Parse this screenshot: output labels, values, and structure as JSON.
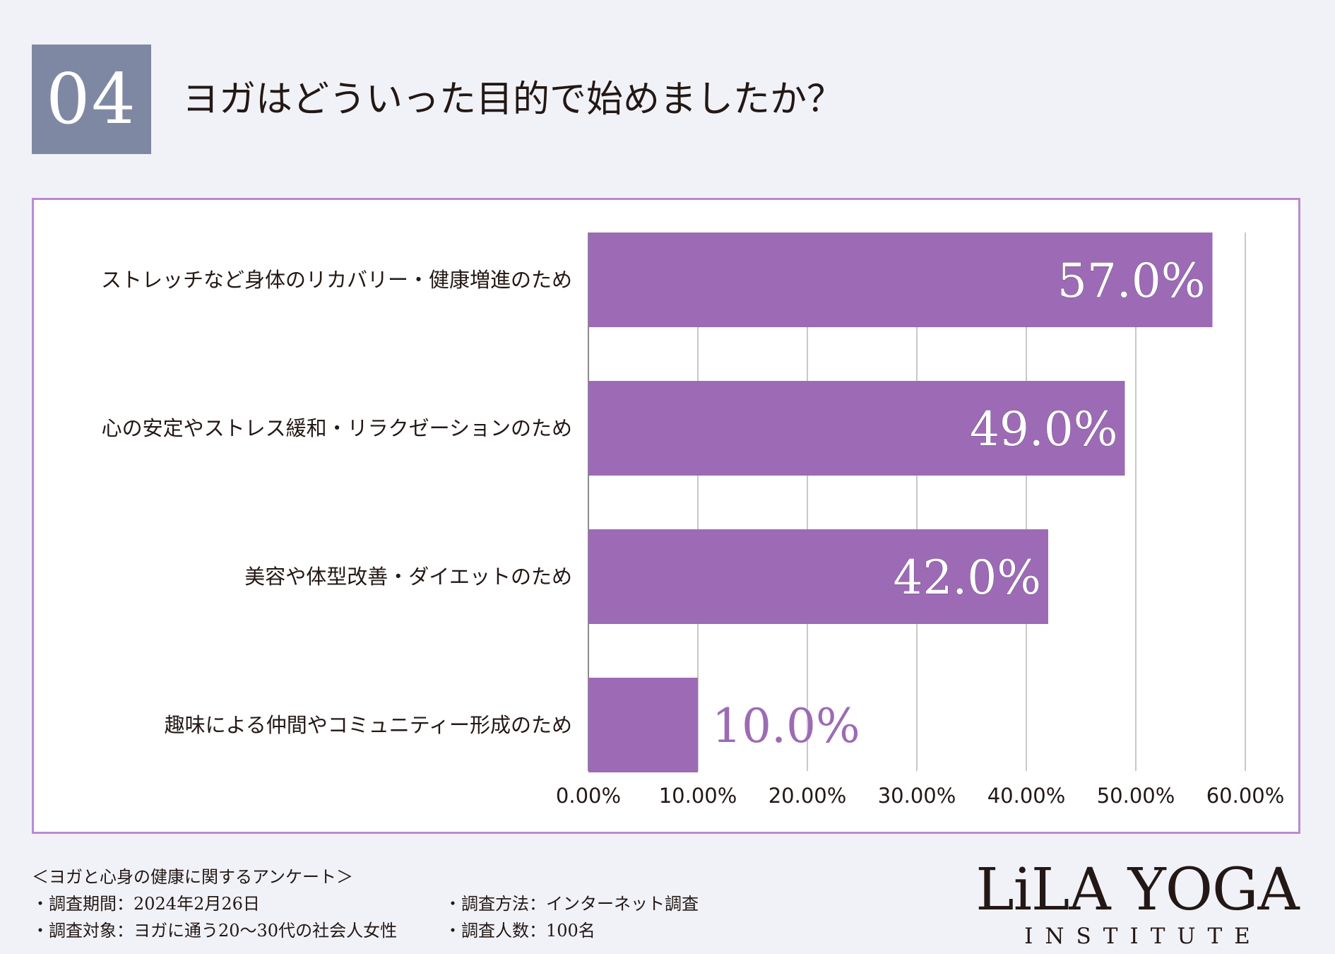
{
  "header": {
    "number": "04",
    "title": "ヨガはどういった目的で始めましたか？"
  },
  "chart_data": {
    "type": "bar",
    "orientation": "horizontal",
    "categories": [
      "ストレッチなど身体のリカバリー・健康増進のため",
      "心の安定やストレス緩和・リラクゼーションのため",
      "美容や体型改善・ダイエットのため",
      "趣味による仲間やコミュニティー形成のため"
    ],
    "values": [
      57.0,
      49.0,
      42.0,
      10.0
    ],
    "value_labels": [
      "57.0%",
      "49.0%",
      "42.0%",
      "10.0%"
    ],
    "xlim": [
      0,
      60
    ],
    "xticks": [
      0,
      10,
      20,
      30,
      40,
      50,
      60
    ],
    "xtick_labels": [
      "0.00%",
      "10.00%",
      "20.00%",
      "30.00%",
      "40.00%",
      "50.00%",
      "60.00%"
    ],
    "grid": true,
    "bar_color": "#9d6bb5",
    "label_color_inside": "#ffffff",
    "label_color_outside": "#9d6bb5",
    "grid_color": "#c8c8c8",
    "frame_color": "#b98bd2"
  },
  "survey": {
    "heading": "＜ヨガと心身の健康に関するアンケート＞",
    "period": "・調査期間：2024年2月26日",
    "method": "・調査方法：インターネット調査",
    "target": "・調査対象：ヨガに通う20〜30代の社会人女性",
    "count": "・調査人数：100名"
  },
  "logo": {
    "main": "LiLA YOGA",
    "sub": "INSTITUTE"
  }
}
